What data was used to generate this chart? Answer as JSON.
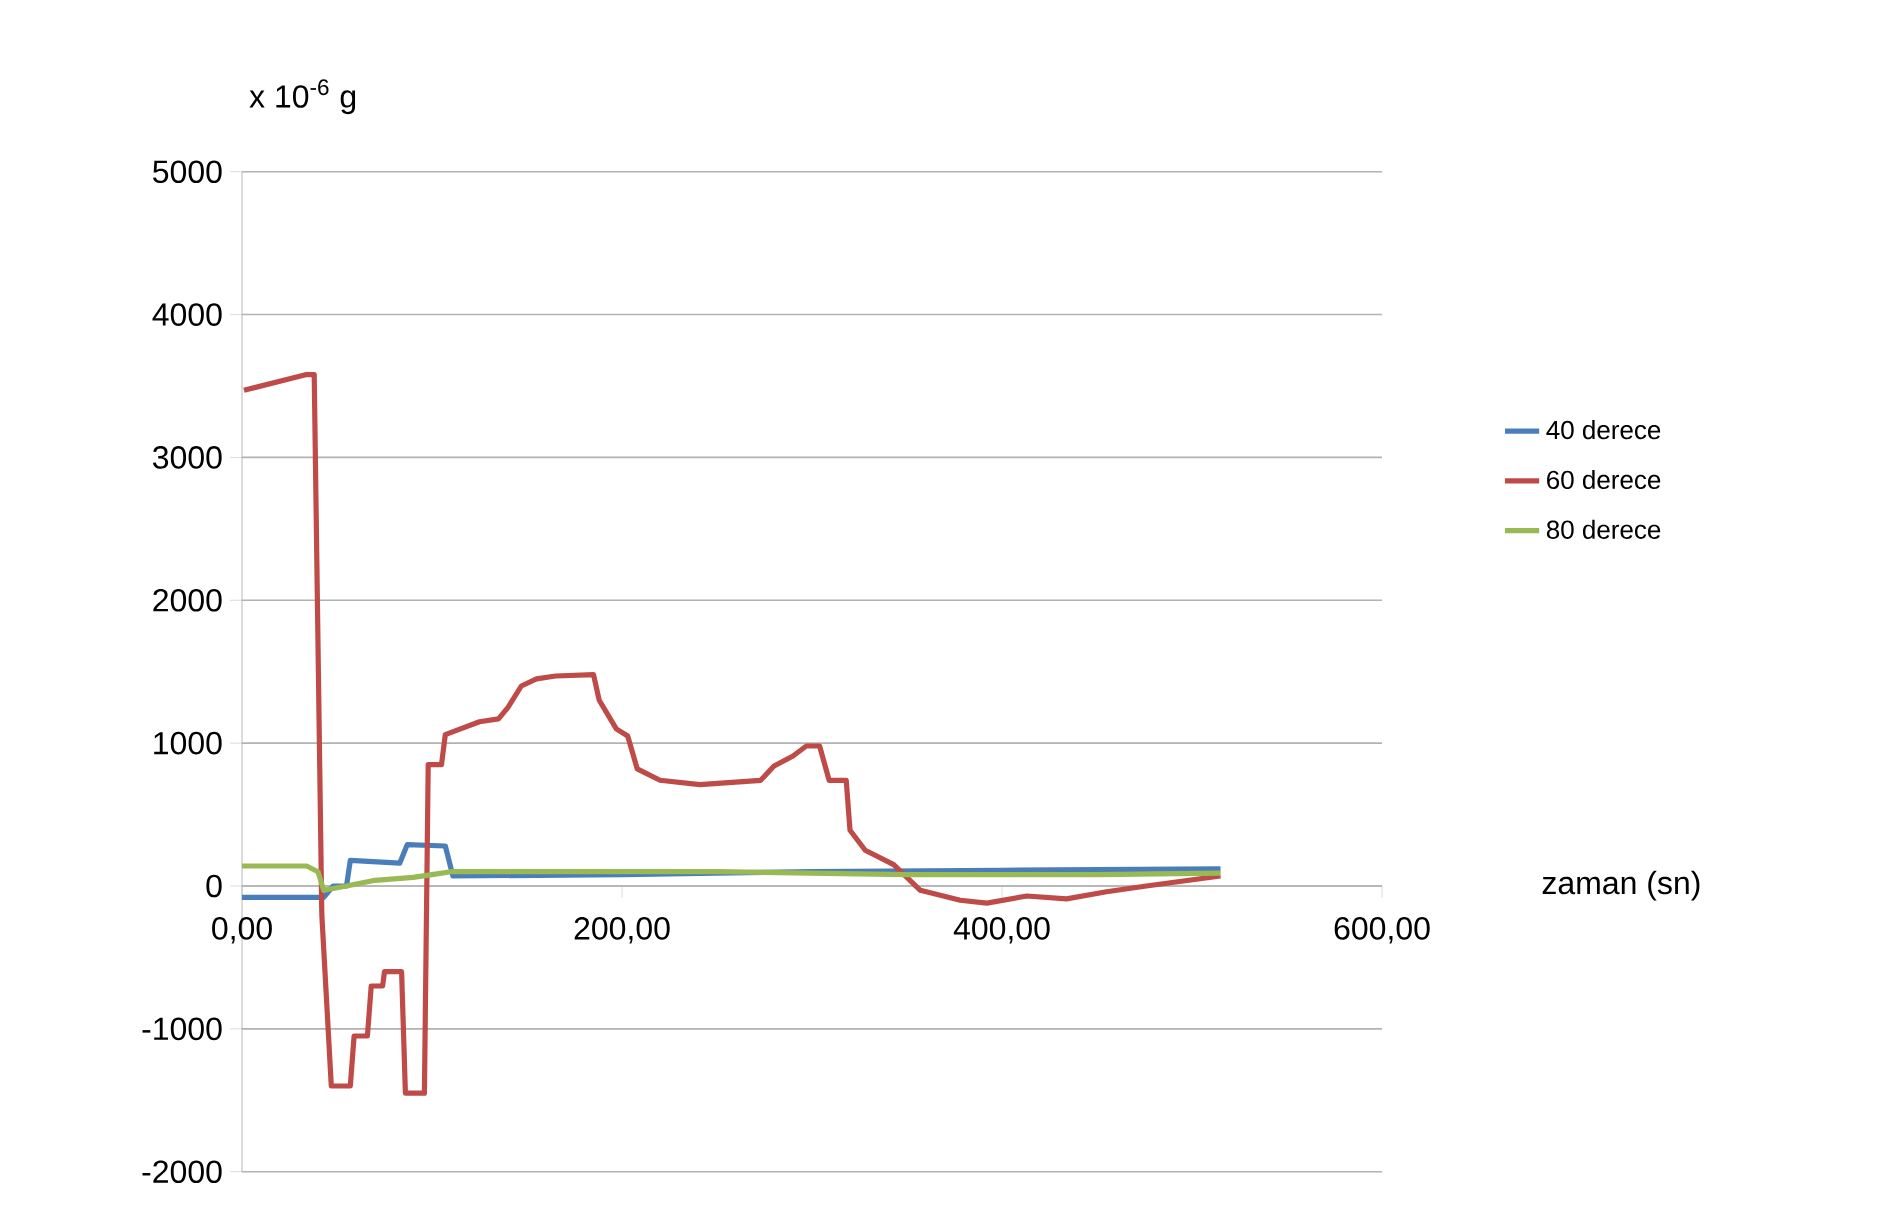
{
  "chart_data": {
    "type": "line",
    "xlabel": "zaman (sn)",
    "ylabel": "x 10$^{-6}$ g",
    "xlim": [
      0,
      600
    ],
    "ylim": [
      -2000,
      5000
    ],
    "xticks": [
      {
        "value": 0,
        "label": "0,00"
      },
      {
        "value": 200,
        "label": "200,00"
      },
      {
        "value": 400,
        "label": "400,00"
      },
      {
        "value": 600,
        "label": "600,00"
      }
    ],
    "yticks": [
      -2000,
      -1000,
      0,
      1000,
      2000,
      3000,
      4000,
      5000
    ],
    "grid": "y",
    "legend": "right",
    "marker": "none",
    "line_style": "solid",
    "series": [
      {
        "name": "40 derece",
        "color": "#4a7ebb",
        "x": [
          0,
          43,
          48,
          55,
          57,
          70,
          83,
          87,
          107,
          111,
          200,
          300,
          400,
          515
        ],
        "values": [
          -80,
          -80,
          0,
          0,
          180,
          170,
          160,
          290,
          280,
          70,
          80,
          100,
          110,
          120
        ]
      },
      {
        "name": "60 derece",
        "color": "#be4b48",
        "x": [
          1,
          34,
          38,
          42,
          47,
          57,
          59,
          66,
          68,
          74,
          75,
          84,
          86,
          96,
          98,
          105,
          107,
          115,
          125,
          135,
          140,
          147,
          155,
          165,
          185,
          188,
          197,
          203,
          208,
          220,
          241,
          273,
          280,
          290,
          297,
          304,
          309,
          318,
          320,
          328,
          343,
          357,
          378,
          392,
          413,
          434,
          455,
          476,
          515
        ],
        "values": [
          3470,
          3580,
          3580,
          -200,
          -1400,
          -1400,
          -1050,
          -1050,
          -700,
          -700,
          -600,
          -600,
          -1450,
          -1450,
          850,
          850,
          1060,
          1100,
          1150,
          1170,
          1250,
          1400,
          1450,
          1470,
          1480,
          1300,
          1100,
          1050,
          820,
          740,
          710,
          740,
          840,
          910,
          980,
          980,
          740,
          740,
          390,
          250,
          150,
          -30,
          -100,
          -120,
          -70,
          -90,
          -40,
          0,
          70
        ]
      },
      {
        "name": "80 derece",
        "color": "#98b954",
        "x": [
          0,
          34,
          40,
          43,
          55,
          70,
          90,
          100,
          110,
          250,
          350,
          450,
          515
        ],
        "values": [
          140,
          140,
          100,
          -30,
          0,
          40,
          60,
          80,
          100,
          100,
          80,
          80,
          90
        ]
      }
    ]
  }
}
